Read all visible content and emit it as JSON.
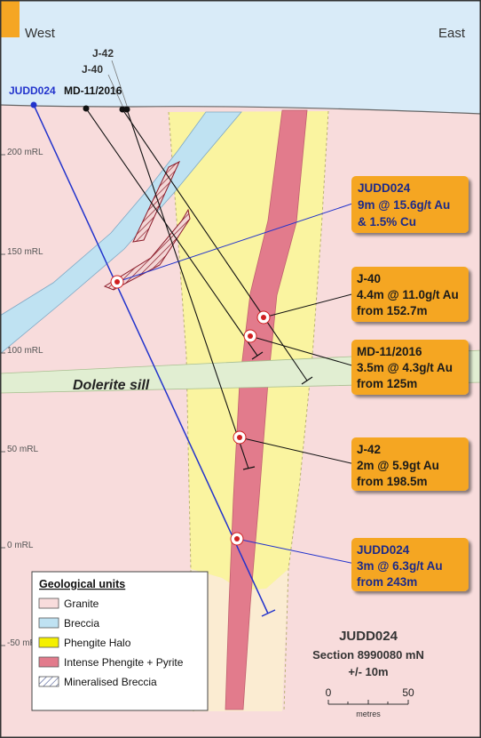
{
  "header": {
    "west": "West",
    "east": "East"
  },
  "drillholes": [
    {
      "label": "JUDD024"
    },
    {
      "label": "J-42"
    },
    {
      "label": "J-40"
    },
    {
      "label": "MD-11/2016"
    }
  ],
  "elevations": [
    "200 mRL",
    "150 mRL",
    "100 mRL",
    "50 mRL",
    "0 mRL",
    "-50 mRL"
  ],
  "sill_label": "Dolerite sill",
  "callouts": [
    {
      "hole": "JUDD024",
      "intercept": "9m @ 15.6g/t Au",
      "detail": "& 1.5% Cu"
    },
    {
      "hole": "J-40",
      "intercept": "4.4m @ 11.0g/t Au",
      "detail": "from 152.7m"
    },
    {
      "hole": "MD-11/2016",
      "intercept": "3.5m @ 4.3g/t Au",
      "detail": "from 125m"
    },
    {
      "hole": "J-42",
      "intercept": "2m @ 5.9gt Au",
      "detail": "from 198.5m"
    },
    {
      "hole": "JUDD024",
      "intercept": "3m @ 6.3g/t Au",
      "detail": "from 243m"
    }
  ],
  "legend": {
    "title": "Geological units",
    "items": [
      "Granite",
      "Breccia",
      "Phengite Halo",
      "Intense Phengite + Pyrite",
      "Mineralised Breccia"
    ]
  },
  "section": {
    "hole": "JUDD024",
    "name": "Section 8990080 mN",
    "tolerance": "+/- 10m"
  },
  "scale": {
    "start": "0",
    "end": "50",
    "unit": "metres"
  }
}
